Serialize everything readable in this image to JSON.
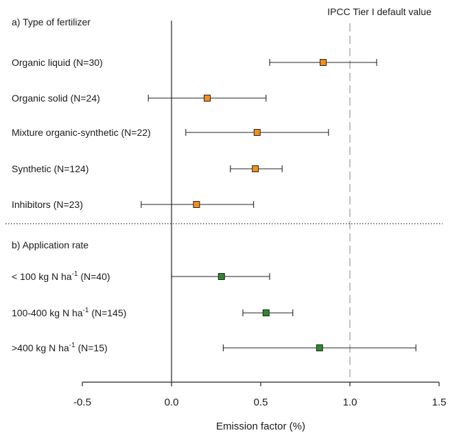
{
  "chart_data": {
    "type": "forest",
    "xlabel": "Emission factor (%)",
    "xlim": [
      -0.5,
      1.5
    ],
    "x_ticks": [
      -0.5,
      0.0,
      0.5,
      1.0,
      1.5
    ],
    "x_tick_labels": [
      "-0.5",
      "0.0",
      "0.5",
      "1.0",
      "1.5"
    ],
    "reference_line": {
      "x": 1.0,
      "label": "IPCC Tier I default value",
      "style": "dashed"
    },
    "zero_line": {
      "x": 0.0
    },
    "groups": [
      {
        "title": "a) Type of fertilizer",
        "marker_color": "#f28e1c",
        "rows": [
          {
            "label": "Organic liquid (N=30)",
            "value": 0.85,
            "low": 0.55,
            "high": 1.15
          },
          {
            "label": "Organic solid (N=24)",
            "value": 0.2,
            "low": -0.13,
            "high": 0.53
          },
          {
            "label": "Mixture organic-synthetic (N=22)",
            "value": 0.48,
            "low": 0.08,
            "high": 0.88
          },
          {
            "label": "Synthetic (N=124)",
            "value": 0.47,
            "low": 0.33,
            "high": 0.62
          },
          {
            "label": "Inhibitors (N=23)",
            "value": 0.14,
            "low": -0.17,
            "high": 0.46
          }
        ]
      },
      {
        "title": "b) Application rate",
        "marker_color": "#2a8a2a",
        "rows": [
          {
            "label_pre": "< 100 kg N ha",
            "label_sup": "-1",
            "label_post": " (N=40)",
            "value": 0.28,
            "low": 0.0,
            "high": 0.55
          },
          {
            "label_pre": "100-400 kg N ha",
            "label_sup": "-1",
            "label_post": " (N=145)",
            "value": 0.53,
            "low": 0.4,
            "high": 0.68
          },
          {
            "label_pre": ">400 kg N ha",
            "label_sup": "-1",
            "label_post": " (N=15)",
            "value": 0.83,
            "low": 0.29,
            "high": 1.37
          }
        ]
      }
    ]
  }
}
